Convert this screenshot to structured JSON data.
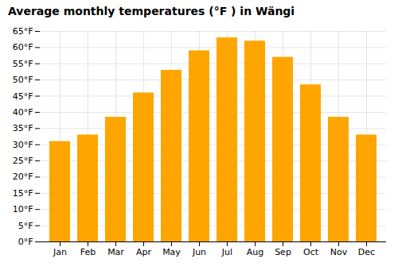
{
  "chart_data": {
    "type": "bar",
    "title": "Average monthly temperatures (°F ) in Wängi",
    "categories": [
      "Jan",
      "Feb",
      "Mar",
      "Apr",
      "May",
      "Jun",
      "Jul",
      "Aug",
      "Sep",
      "Oct",
      "Nov",
      "Dec"
    ],
    "values": [
      31,
      33,
      38.5,
      46,
      53,
      59,
      63,
      62,
      57,
      48.5,
      38.5,
      33
    ],
    "color": "#FFA500",
    "ylim": [
      0,
      65
    ],
    "yticks": [
      {
        "value": 0,
        "label": "0°F"
      },
      {
        "value": 5,
        "label": "5°F"
      },
      {
        "value": 10,
        "label": "10°F"
      },
      {
        "value": 15,
        "label": "15°F"
      },
      {
        "value": 20,
        "label": "20°F"
      },
      {
        "value": 25,
        "label": "25°F"
      },
      {
        "value": 30,
        "label": "30°F"
      },
      {
        "value": 35,
        "label": "35°F"
      },
      {
        "value": 40,
        "label": "40°F"
      },
      {
        "value": 45,
        "label": "45°F"
      },
      {
        "value": 50,
        "label": "50°F"
      },
      {
        "value": 55,
        "label": "55°F"
      },
      {
        "value": 60,
        "label": "60°F"
      },
      {
        "value": 65,
        "label": "65°F"
      }
    ],
    "grid": true
  }
}
